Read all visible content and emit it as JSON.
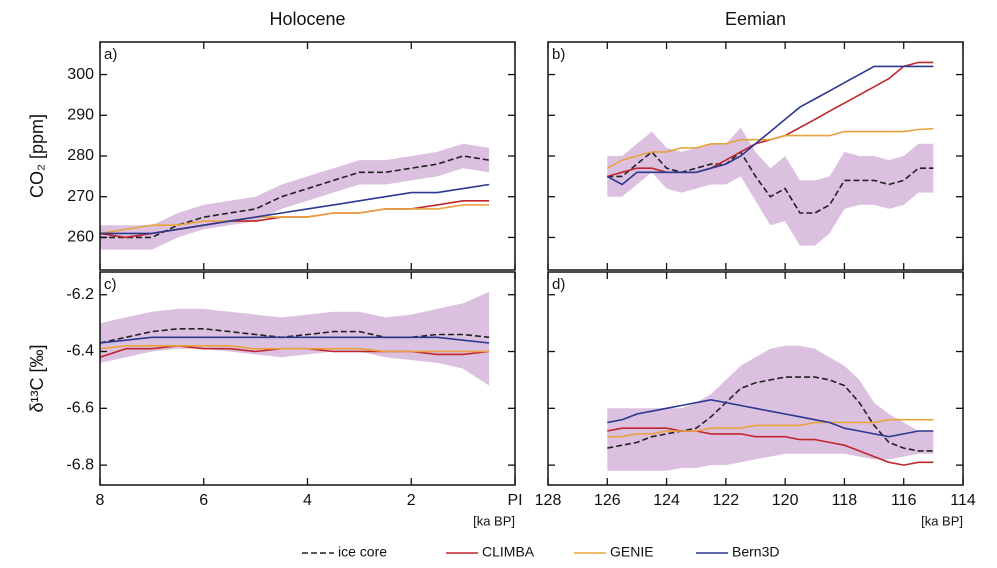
{
  "chart_data": [
    {
      "type": "line",
      "title": "Holocene",
      "panel_label": "a)",
      "ylabel": "CO₂  [ppm]",
      "x": [
        8,
        7.5,
        7,
        6.5,
        6,
        5.5,
        5,
        4.5,
        4,
        3.5,
        3,
        2.5,
        2,
        1.5,
        1,
        0.5
      ],
      "xlim": [
        8,
        0
      ],
      "xticks": [
        8,
        6,
        4,
        2,
        0
      ],
      "ylim": [
        252,
        308
      ],
      "yticks": [
        260,
        270,
        280,
        290,
        300
      ],
      "band": {
        "color": "#dcc0e0",
        "lower": [
          257,
          257,
          257,
          260,
          262,
          263,
          264,
          267,
          269,
          271,
          273,
          273,
          274,
          275,
          277,
          276
        ],
        "upper": [
          263,
          263,
          263,
          266,
          268,
          269,
          270,
          273,
          275,
          277,
          279,
          279,
          280,
          281,
          283,
          282
        ]
      },
      "series": [
        {
          "name": "ice core",
          "color": "#222222",
          "dash": true,
          "values": [
            260,
            260,
            260,
            263,
            265,
            266,
            267,
            270,
            272,
            274,
            276,
            276,
            277,
            278,
            280,
            279
          ]
        },
        {
          "name": "CLIMBA",
          "color": "#c0272d",
          "dash": false,
          "values": [
            261,
            260,
            261,
            262,
            263,
            264,
            264,
            265,
            265,
            266,
            266,
            267,
            267,
            268,
            269,
            269
          ]
        },
        {
          "name": "GENIE",
          "color": "#e8a33d",
          "dash": false,
          "values": [
            261,
            262,
            263,
            263,
            264,
            264,
            265,
            265,
            265,
            266,
            266,
            267,
            267,
            267,
            268,
            268
          ]
        },
        {
          "name": "Bern3D",
          "color": "#2b3990",
          "dash": false,
          "values": [
            261,
            261,
            261,
            262,
            263,
            264,
            265,
            266,
            267,
            268,
            269,
            270,
            271,
            271,
            272,
            273
          ]
        }
      ]
    },
    {
      "type": "line",
      "title": "Eemian",
      "panel_label": "b)",
      "x": [
        126,
        125.5,
        125,
        124.5,
        124,
        123.5,
        123,
        122.5,
        122,
        121.5,
        121,
        120.5,
        120,
        119.5,
        119,
        118.5,
        118,
        117.5,
        117,
        116.5,
        116,
        115.5,
        115
      ],
      "xlim": [
        128,
        114
      ],
      "xticks": [
        128,
        126,
        124,
        122,
        120,
        118,
        116,
        114
      ],
      "ylim": [
        252,
        308
      ],
      "yticks": [
        260,
        270,
        280,
        290,
        300
      ],
      "band": {
        "color": "#dcc0e0",
        "lower": [
          270,
          270,
          273,
          276,
          272,
          271,
          272,
          273,
          273,
          275,
          269,
          263,
          264,
          258,
          258,
          261,
          267,
          268,
          268,
          267,
          268,
          271,
          271
        ],
        "upper": [
          280,
          280,
          283,
          286,
          282,
          281,
          282,
          283,
          283,
          287,
          281,
          277,
          280,
          274,
          274,
          275,
          281,
          280,
          280,
          279,
          280,
          283,
          283
        ]
      },
      "series": [
        {
          "name": "ice core",
          "color": "#222222",
          "dash": true,
          "values": [
            275,
            275,
            278,
            281,
            277,
            276,
            277,
            278,
            278,
            281,
            275,
            270,
            272,
            266,
            266,
            268,
            274,
            274,
            274,
            273,
            274,
            277,
            277
          ]
        },
        {
          "name": "CLIMBA",
          "color": "#c0272d",
          "dash": false,
          "values": [
            275,
            276,
            277,
            277,
            276,
            276,
            276,
            277,
            279,
            281,
            283,
            284,
            285,
            287,
            289,
            291,
            293,
            295,
            297,
            299,
            302,
            303,
            303
          ]
        },
        {
          "name": "GENIE",
          "color": "#e8a33d",
          "dash": false,
          "values": [
            277,
            279,
            280,
            281,
            281,
            282,
            282,
            283,
            283,
            284,
            284,
            284,
            285,
            285,
            285,
            285,
            286,
            286,
            286,
            286,
            286,
            286.5,
            286.7
          ]
        },
        {
          "name": "Bern3D",
          "color": "#2b3990",
          "dash": false,
          "values": [
            275,
            273,
            276,
            276,
            276,
            276,
            276,
            277,
            278,
            280,
            283,
            286,
            289,
            292,
            294,
            296,
            298,
            300,
            302,
            302,
            302,
            302,
            302
          ]
        }
      ]
    },
    {
      "type": "line",
      "panel_label": "c)",
      "ylabel": "δ¹³C  [‰]",
      "xlabel": "[ka BP]",
      "x": [
        8,
        7.5,
        7,
        6.5,
        6,
        5.5,
        5,
        4.5,
        4,
        3.5,
        3,
        2.5,
        2,
        1.5,
        1,
        0.5
      ],
      "xlim": [
        8,
        0
      ],
      "xticks": [
        8,
        6,
        4,
        2,
        {
          "value": 0,
          "label": "PI"
        }
      ],
      "ylim": [
        -6.87,
        -6.12
      ],
      "yticks": [
        -6.2,
        -6.4,
        -6.6,
        -6.8
      ],
      "band": {
        "color": "#dcc0e0",
        "lower": [
          -6.44,
          -6.42,
          -6.4,
          -6.39,
          -6.39,
          -6.4,
          -6.41,
          -6.42,
          -6.41,
          -6.4,
          -6.4,
          -6.42,
          -6.43,
          -6.44,
          -6.46,
          -6.52
        ],
        "upper": [
          -6.3,
          -6.28,
          -6.26,
          -6.25,
          -6.25,
          -6.26,
          -6.27,
          -6.28,
          -6.27,
          -6.26,
          -6.26,
          -6.28,
          -6.27,
          -6.25,
          -6.23,
          -6.19
        ]
      },
      "series": [
        {
          "name": "ice core",
          "color": "#222222",
          "dash": true,
          "values": [
            -6.37,
            -6.35,
            -6.33,
            -6.32,
            -6.32,
            -6.33,
            -6.34,
            -6.35,
            -6.34,
            -6.33,
            -6.33,
            -6.35,
            -6.35,
            -6.34,
            -6.34,
            -6.35
          ]
        },
        {
          "name": "CLIMBA",
          "color": "#c0272d",
          "dash": false,
          "values": [
            -6.42,
            -6.39,
            -6.39,
            -6.38,
            -6.39,
            -6.39,
            -6.4,
            -6.39,
            -6.39,
            -6.4,
            -6.4,
            -6.4,
            -6.4,
            -6.41,
            -6.41,
            -6.4
          ]
        },
        {
          "name": "GENIE",
          "color": "#e8a33d",
          "dash": false,
          "values": [
            -6.39,
            -6.38,
            -6.38,
            -6.38,
            -6.38,
            -6.38,
            -6.39,
            -6.39,
            -6.39,
            -6.39,
            -6.39,
            -6.4,
            -6.4,
            -6.4,
            -6.4,
            -6.4
          ]
        },
        {
          "name": "Bern3D",
          "color": "#2b3990",
          "dash": false,
          "values": [
            -6.37,
            -6.36,
            -6.35,
            -6.35,
            -6.35,
            -6.35,
            -6.35,
            -6.35,
            -6.35,
            -6.35,
            -6.35,
            -6.35,
            -6.35,
            -6.35,
            -6.36,
            -6.37
          ]
        }
      ]
    },
    {
      "type": "line",
      "panel_label": "d)",
      "xlabel": "[ka BP]",
      "x": [
        126,
        125.5,
        125,
        124.5,
        124,
        123.5,
        123,
        122.5,
        122,
        121.5,
        121,
        120.5,
        120,
        119.5,
        119,
        118.5,
        118,
        117.5,
        117,
        116.5,
        116,
        115.5,
        115
      ],
      "xlim": [
        128,
        114
      ],
      "xticks": [
        128,
        126,
        124,
        122,
        120,
        118,
        116,
        114
      ],
      "ylim": [
        -6.87,
        -6.12
      ],
      "yticks": [
        -6.2,
        -6.4,
        -6.6,
        -6.8
      ],
      "band": {
        "color": "#dcc0e0",
        "lower": [
          -6.82,
          -6.82,
          -6.82,
          -6.82,
          -6.82,
          -6.81,
          -6.81,
          -6.8,
          -6.8,
          -6.79,
          -6.78,
          -6.77,
          -6.76,
          -6.76,
          -6.76,
          -6.76,
          -6.76,
          -6.77,
          -6.78,
          -6.78,
          -6.77,
          -6.76,
          -6.76
        ],
        "upper": [
          -6.6,
          -6.6,
          -6.6,
          -6.6,
          -6.6,
          -6.6,
          -6.58,
          -6.55,
          -6.5,
          -6.45,
          -6.42,
          -6.39,
          -6.38,
          -6.38,
          -6.39,
          -6.42,
          -6.45,
          -6.5,
          -6.58,
          -6.62,
          -6.65,
          -6.68,
          -6.68
        ]
      },
      "series": [
        {
          "name": "ice core",
          "color": "#222222",
          "dash": true,
          "values": [
            -6.74,
            -6.73,
            -6.72,
            -6.7,
            -6.69,
            -6.68,
            -6.67,
            -6.63,
            -6.58,
            -6.53,
            -6.51,
            -6.5,
            -6.49,
            -6.49,
            -6.49,
            -6.5,
            -6.52,
            -6.58,
            -6.66,
            -6.72,
            -6.74,
            -6.75,
            -6.75
          ]
        },
        {
          "name": "CLIMBA",
          "color": "#c0272d",
          "dash": false,
          "values": [
            -6.68,
            -6.67,
            -6.67,
            -6.67,
            -6.67,
            -6.68,
            -6.68,
            -6.69,
            -6.69,
            -6.69,
            -6.7,
            -6.7,
            -6.7,
            -6.71,
            -6.71,
            -6.72,
            -6.73,
            -6.75,
            -6.77,
            -6.79,
            -6.8,
            -6.79,
            -6.79
          ]
        },
        {
          "name": "GENIE",
          "color": "#e8a33d",
          "dash": false,
          "values": [
            -6.7,
            -6.7,
            -6.69,
            -6.69,
            -6.68,
            -6.68,
            -6.68,
            -6.67,
            -6.67,
            -6.67,
            -6.66,
            -6.66,
            -6.66,
            -6.66,
            -6.65,
            -6.65,
            -6.65,
            -6.65,
            -6.65,
            -6.64,
            -6.64,
            -6.64,
            -6.64
          ]
        },
        {
          "name": "Bern3D",
          "color": "#2b3990",
          "dash": false,
          "values": [
            -6.65,
            -6.64,
            -6.62,
            -6.61,
            -6.6,
            -6.59,
            -6.58,
            -6.57,
            -6.58,
            -6.59,
            -6.6,
            -6.61,
            -6.62,
            -6.63,
            -6.64,
            -6.65,
            -6.67,
            -6.68,
            -6.69,
            -6.7,
            -6.69,
            -6.68,
            -6.68
          ]
        }
      ]
    }
  ]
}
